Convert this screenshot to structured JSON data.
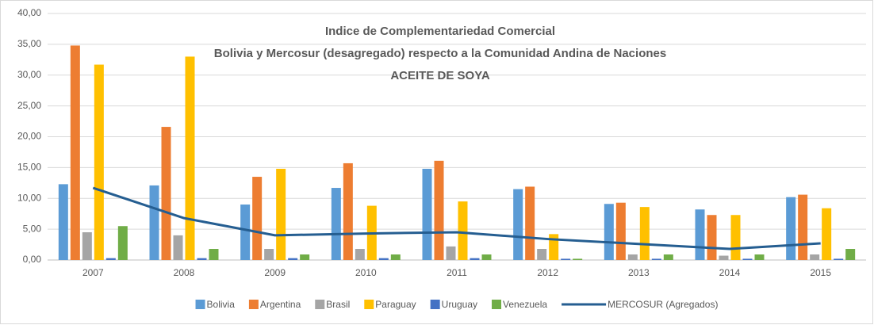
{
  "chart_data": {
    "type": "bar",
    "title_lines": [
      "Indice de Complementariedad Comercial",
      "Bolivia y Mercosur (desagregado) respecto a la Comunidad Andina de Naciones",
      "ACEITE DE SOYA"
    ],
    "categories": [
      "2007",
      "2008",
      "2009",
      "2010",
      "2011",
      "2012",
      "2013",
      "2014",
      "2015"
    ],
    "series": [
      {
        "name": "Bolivia",
        "type": "bar",
        "color": "#5b9bd5",
        "values": [
          12.3,
          12.1,
          9.0,
          11.7,
          14.8,
          11.5,
          9.1,
          8.2,
          10.2
        ]
      },
      {
        "name": "Argentina",
        "type": "bar",
        "color": "#ed7d31",
        "values": [
          34.8,
          21.6,
          13.5,
          15.7,
          16.1,
          11.9,
          9.3,
          7.3,
          10.6
        ]
      },
      {
        "name": "Brasil",
        "type": "bar",
        "color": "#a5a5a5",
        "values": [
          4.5,
          4.0,
          1.8,
          1.8,
          2.2,
          1.8,
          0.9,
          0.7,
          0.9
        ]
      },
      {
        "name": "Paraguay",
        "type": "bar",
        "color": "#ffc000",
        "values": [
          31.7,
          33.0,
          14.8,
          8.8,
          9.5,
          4.2,
          8.6,
          7.3,
          8.4
        ]
      },
      {
        "name": "Uruguay",
        "type": "bar",
        "color": "#4472c4",
        "values": [
          0.3,
          0.3,
          0.3,
          0.3,
          0.3,
          0.2,
          0.2,
          0.2,
          0.2
        ]
      },
      {
        "name": "Venezuela",
        "type": "bar",
        "color": "#70ad47",
        "values": [
          5.5,
          1.8,
          0.9,
          0.9,
          0.9,
          0.2,
          0.9,
          0.9,
          1.8
        ]
      },
      {
        "name": "MERCOSUR (Agregados)",
        "type": "line",
        "color": "#255e91",
        "values": [
          11.7,
          6.8,
          4.0,
          4.3,
          4.5,
          3.4,
          2.6,
          1.8,
          2.7
        ]
      }
    ],
    "ylim": [
      0,
      40
    ],
    "yticks": [
      {
        "value": 0,
        "label": "0,00"
      },
      {
        "value": 5,
        "label": "5,00"
      },
      {
        "value": 10,
        "label": "10,00"
      },
      {
        "value": 15,
        "label": "15,00"
      },
      {
        "value": 20,
        "label": "20,00"
      },
      {
        "value": 25,
        "label": "25,00"
      },
      {
        "value": 30,
        "label": "30,00"
      },
      {
        "value": 35,
        "label": "35,00"
      },
      {
        "value": 40,
        "label": "40,00"
      }
    ],
    "grid": true,
    "legend": "bottom"
  }
}
